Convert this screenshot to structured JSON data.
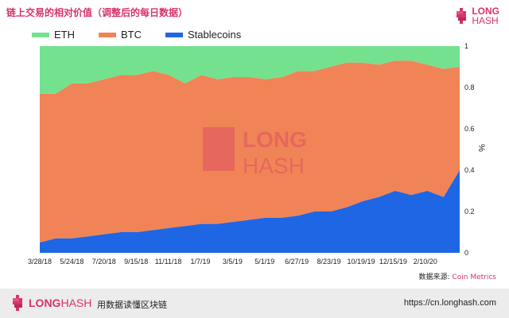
{
  "title": "链上交易的相对价值（调整后的每日数据）",
  "brand": {
    "word1": "LONG",
    "word2": "HASH"
  },
  "source": {
    "label": "数据来源:",
    "value": "Coin Metrics"
  },
  "footer": {
    "logo_long": "LONG",
    "logo_hash": "HASH",
    "tagline": "用数据读懂区块链",
    "url": "https://cn.longhash.com"
  },
  "colors": {
    "eth": "#74e18f",
    "btc": "#f08456",
    "stable": "#1f66e5",
    "brand": "#d6336c"
  },
  "chart_data": {
    "type": "area",
    "stacked": true,
    "ylabel": "%",
    "ylim": [
      0,
      1
    ],
    "yticks": [
      "0",
      "0.2",
      "0.4",
      "0.6",
      "0.8",
      "1"
    ],
    "ytick_values": [
      0,
      0.2,
      0.4,
      0.6,
      0.8,
      1.0
    ],
    "x_tick_labels": [
      "3/28/18",
      "5/24/18",
      "7/20/18",
      "9/15/18",
      "11/11/18",
      "1/7/19",
      "3/5/19",
      "5/1/19",
      "6/27/19",
      "8/23/19",
      "10/19/19",
      "12/15/19",
      "2/10/20"
    ],
    "x_start": "3/28/18",
    "x_end": "4/11/20",
    "x": [
      "3/28/18",
      "4/25/18",
      "5/24/18",
      "6/21/18",
      "7/20/18",
      "8/17/18",
      "9/15/18",
      "10/13/18",
      "11/11/18",
      "12/9/18",
      "1/7/19",
      "2/4/19",
      "3/5/19",
      "4/2/19",
      "5/1/19",
      "5/29/19",
      "6/27/19",
      "7/25/19",
      "8/23/19",
      "9/20/19",
      "10/19/19",
      "11/16/19",
      "12/15/19",
      "1/12/20",
      "2/10/20",
      "3/10/20",
      "4/11/20"
    ],
    "series": [
      {
        "name": "Stablecoins",
        "values": [
          0.05,
          0.07,
          0.07,
          0.08,
          0.09,
          0.1,
          0.1,
          0.11,
          0.12,
          0.13,
          0.14,
          0.14,
          0.15,
          0.16,
          0.17,
          0.17,
          0.18,
          0.2,
          0.2,
          0.22,
          0.25,
          0.27,
          0.3,
          0.28,
          0.3,
          0.27,
          0.4
        ]
      },
      {
        "name": "BTC",
        "values": [
          0.72,
          0.7,
          0.75,
          0.74,
          0.75,
          0.76,
          0.76,
          0.77,
          0.74,
          0.69,
          0.72,
          0.7,
          0.7,
          0.69,
          0.67,
          0.68,
          0.7,
          0.68,
          0.7,
          0.7,
          0.67,
          0.64,
          0.63,
          0.65,
          0.61,
          0.62,
          0.5
        ]
      },
      {
        "name": "ETH",
        "values": [
          0.23,
          0.23,
          0.18,
          0.18,
          0.16,
          0.14,
          0.14,
          0.12,
          0.14,
          0.18,
          0.14,
          0.16,
          0.15,
          0.15,
          0.16,
          0.15,
          0.12,
          0.12,
          0.1,
          0.08,
          0.08,
          0.09,
          0.07,
          0.07,
          0.09,
          0.11,
          0.1
        ]
      }
    ]
  }
}
